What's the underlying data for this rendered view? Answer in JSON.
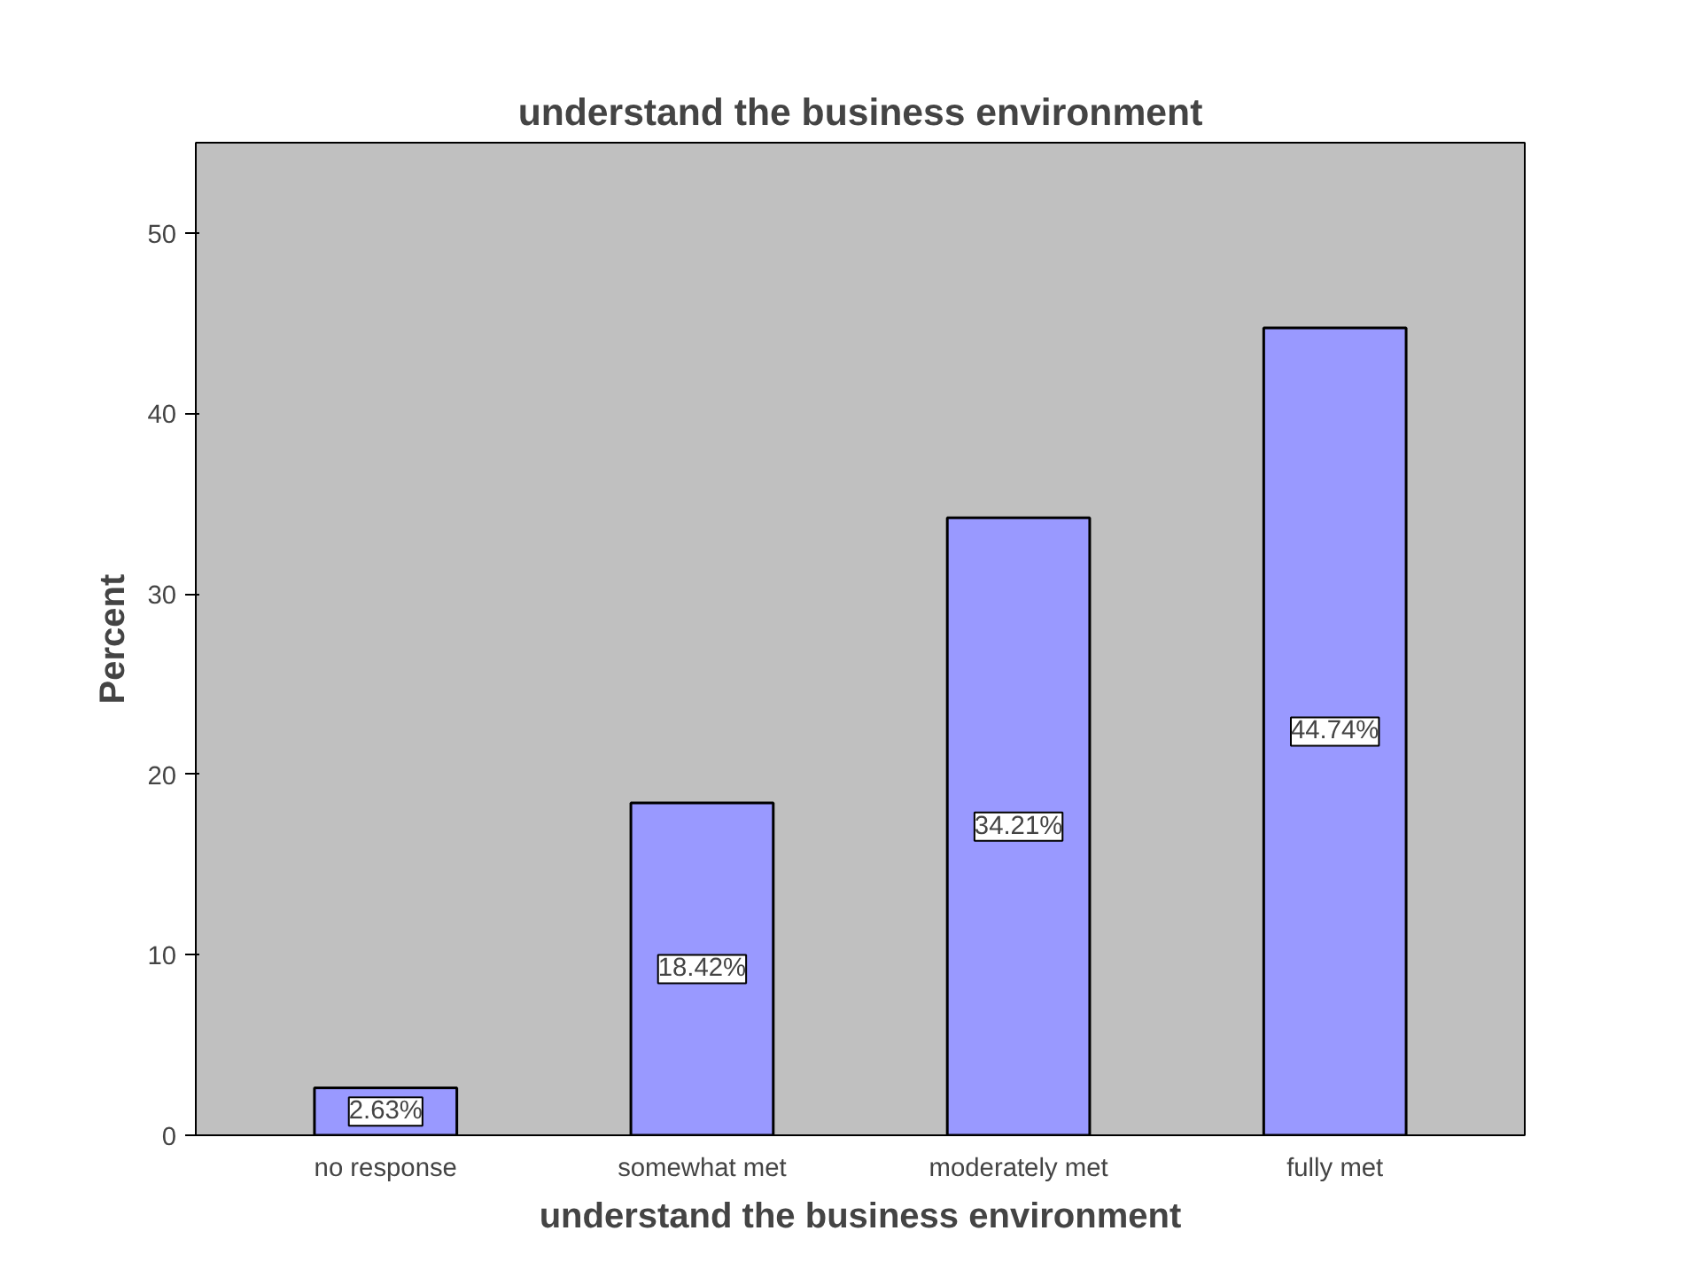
{
  "chart_data": {
    "type": "bar",
    "title": "understand the business environment",
    "xlabel": "understand the business environment",
    "ylabel": "Percent",
    "categories": [
      "no response",
      "somewhat met",
      "moderately met",
      "fully met"
    ],
    "values": [
      2.63,
      18.42,
      34.21,
      44.74
    ],
    "value_labels": [
      "2.63%",
      "18.42%",
      "34.21%",
      "44.74%"
    ],
    "color": "#9999ff",
    "ylim": [
      0,
      55
    ],
    "yticks": [
      0,
      10,
      20,
      30,
      40,
      50
    ],
    "grid": false
  }
}
